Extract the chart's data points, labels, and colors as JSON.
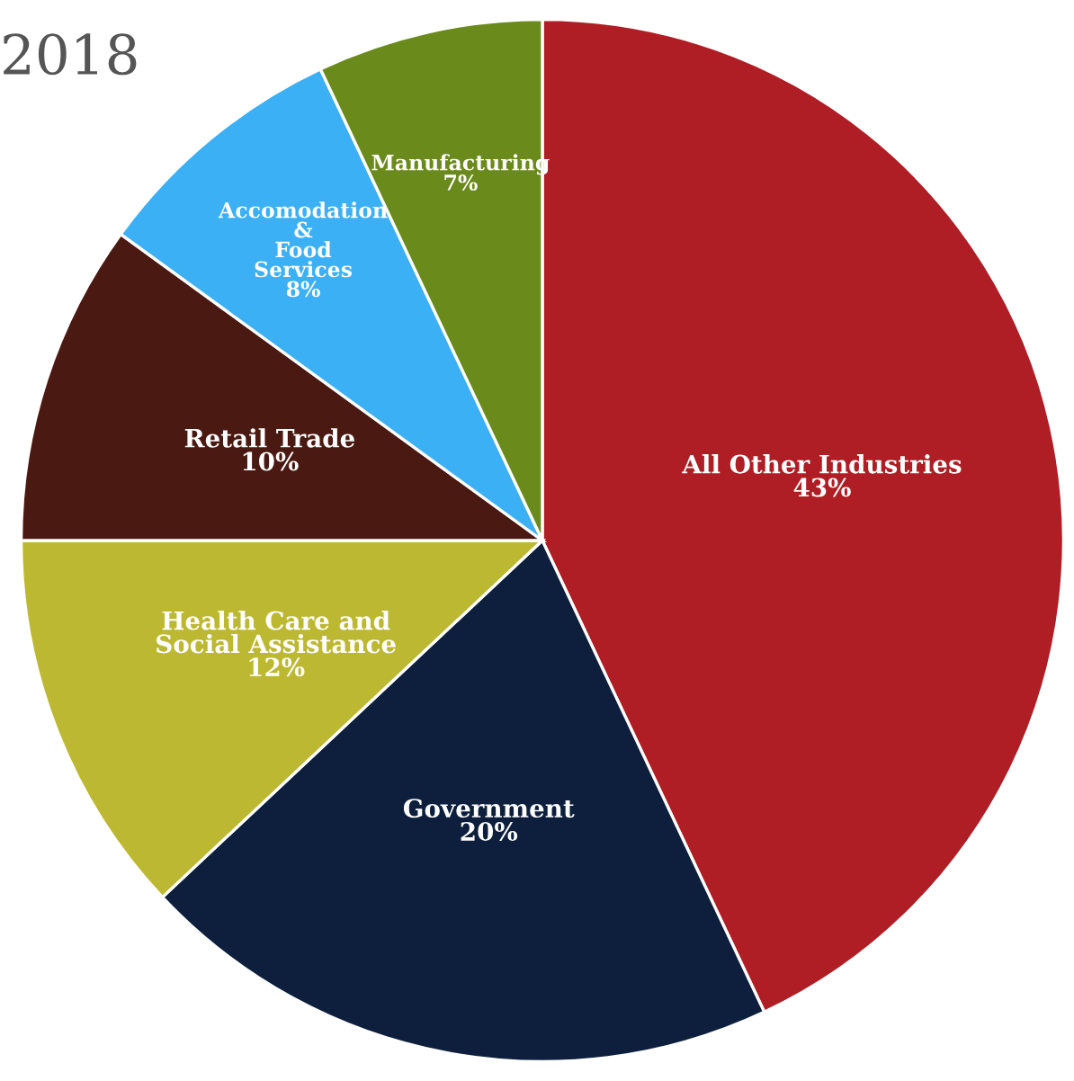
{
  "chart_data": {
    "type": "pie",
    "title": "2018",
    "categories": [
      "All Other Industries",
      "Government",
      "Health Care and\nSocial Assistance",
      "Retail Trade",
      "Accomodation\n&\nFood\nServices",
      "Manufacturing"
    ],
    "values": [
      43,
      20,
      12,
      10,
      8,
      7
    ],
    "colors": [
      "#ae1e24",
      "#0d1f3c",
      "#bdb832",
      "#4a1a12",
      "#3cb0f5",
      "#6b8a1c"
    ],
    "value_labels": [
      "43%",
      "20%",
      "12%",
      "10%",
      "8%",
      "7%"
    ],
    "legend": false
  }
}
